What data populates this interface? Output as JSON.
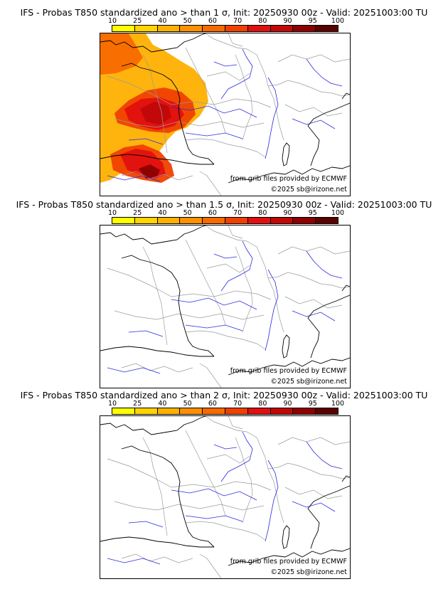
{
  "colorbar": {
    "ticks": [
      "10",
      "25",
      "40",
      "50",
      "60",
      "70",
      "80",
      "90",
      "95",
      "100"
    ],
    "colors": [
      "#ffff00",
      "#ffd400",
      "#ffb000",
      "#ff9000",
      "#f86a00",
      "#f04000",
      "#e01010",
      "#c00808",
      "#8c0000",
      "#5a0000"
    ]
  },
  "map_colors": {
    "coast": "#000000",
    "borders": "#9a9a9a",
    "rivers": "#2a2ae0"
  },
  "panels": [
    {
      "title": "IFS - Probas T850  standardized ano > than 1 σ, Init: 20250930 00z - Valid: 20251003:00 TU",
      "credit": "from grib files provided by ECMWF",
      "copyright": "©2025 sb@irizone.net",
      "has_anomaly": true
    },
    {
      "title": "IFS - Probas T850  standardized ano > than 1.5 σ, Init: 20250930 00z - Valid: 20251003:00 TU",
      "credit": "from grib files provided by ECMWF",
      "copyright": "©2025 sb@irizone.net",
      "has_anomaly": false
    },
    {
      "title": "IFS - Probas T850  standardized ano > than 2 σ, Init: 20250930 00z - Valid: 20251003:00 TU",
      "credit": "from grib files provided by ECMWF",
      "copyright": "©2025 sb@irizone.net",
      "has_anomaly": false
    }
  ]
}
